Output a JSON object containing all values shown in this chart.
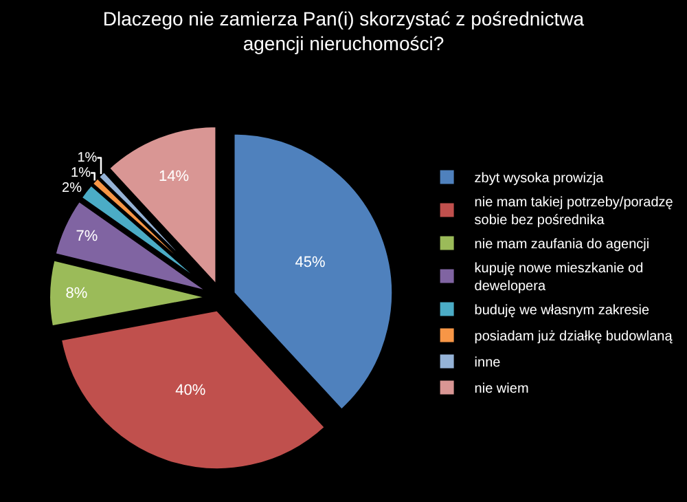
{
  "chart_data": {
    "type": "pie",
    "title": "Dlaczego nie zamierza Pan(i) skorzystać z pośrednictwa agencji nieruchomości?",
    "categories": [
      "zbyt wysoka prowizja",
      "nie mam takiej potrzeby/poradzę sobie bez pośrednika",
      "nie mam zaufania do agencji",
      "kupuję nowe mieszkanie od dewelopera",
      "buduję we własnym zakresie",
      "posiadam już działkę budowlaną",
      "inne",
      "nie wiem"
    ],
    "values": [
      45,
      40,
      8,
      7,
      2,
      1,
      1,
      14
    ],
    "colors": [
      "#4f81bd",
      "#c0504d",
      "#9bbb59",
      "#8064a2",
      "#4bacc6",
      "#f79646",
      "#95b3d7",
      "#d99694"
    ],
    "value_labels": [
      "45%",
      "40%",
      "8%",
      "7%",
      "2%",
      "1%",
      "1%",
      "14%"
    ],
    "legend": "right"
  }
}
